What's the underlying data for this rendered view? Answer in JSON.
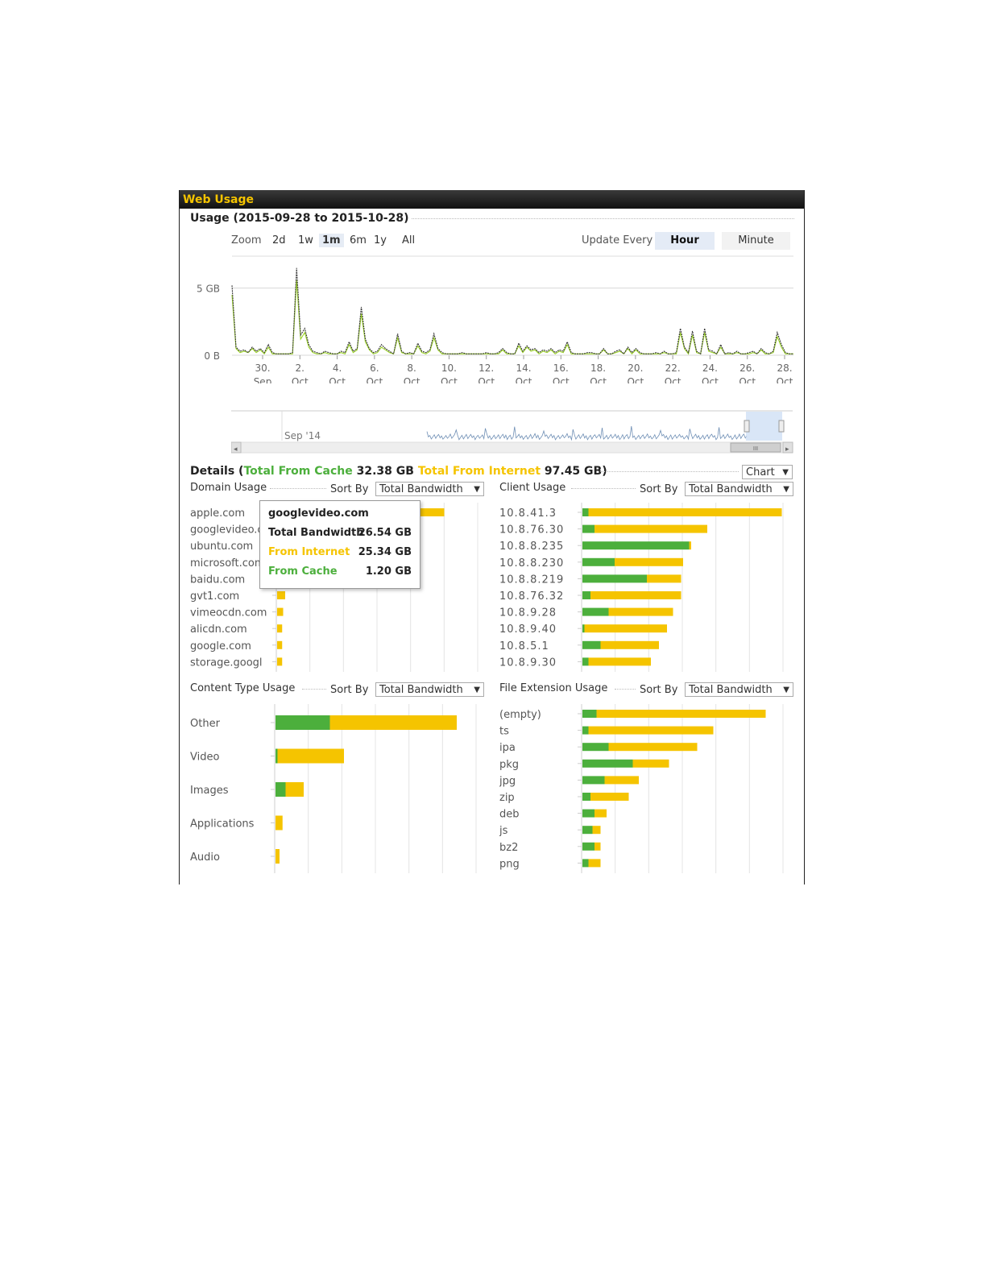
{
  "panel": {
    "title": "Web Usage"
  },
  "usage": {
    "title": "Usage (2015-09-28 to 2015-10-28)",
    "zoom_label": "Zoom",
    "zoom_options": [
      "2d",
      "1w",
      "1m",
      "6m",
      "1y",
      "All"
    ],
    "zoom_selected": "1m",
    "update_label": "Update Every",
    "update_options": [
      "Hour",
      "Minute"
    ],
    "update_selected": "Hour",
    "navigator_label": "Sep '14",
    "navigator_scroll": "III"
  },
  "chart_data": {
    "type": "line",
    "yticks": [
      "5 GB",
      "0 B"
    ],
    "xticks": [
      [
        "30.",
        "Sep"
      ],
      [
        "2.",
        "Oct"
      ],
      [
        "4.",
        "Oct"
      ],
      [
        "6.",
        "Oct"
      ],
      [
        "8.",
        "Oct"
      ],
      [
        "10.",
        "Oct"
      ],
      [
        "12.",
        "Oct"
      ],
      [
        "14.",
        "Oct"
      ],
      [
        "16.",
        "Oct"
      ],
      [
        "18.",
        "Oct"
      ],
      [
        "20.",
        "Oct"
      ],
      [
        "22.",
        "Oct"
      ],
      [
        "24.",
        "Oct"
      ],
      [
        "26.",
        "Oct"
      ],
      [
        "28.",
        "Oct"
      ]
    ],
    "ylim": [
      0,
      6.3
    ],
    "series": [
      {
        "color": "#333333",
        "values": [
          5.2,
          0.6,
          0.3,
          0.4,
          0.2,
          0.6,
          0.3,
          0.5,
          0.2,
          0.8,
          0.2,
          0.1,
          0.1,
          0.1,
          0.1,
          0.2,
          6.5,
          1.5,
          2.0,
          0.8,
          0.3,
          0.2,
          0.1,
          0.3,
          0.2,
          0.1,
          0.1,
          0.3,
          0.2,
          1.0,
          0.3,
          0.5,
          3.6,
          1.2,
          0.5,
          0.2,
          0.3,
          0.8,
          0.5,
          0.3,
          0.1,
          1.6,
          0.3,
          0.1,
          0.2,
          0.1,
          0.9,
          0.3,
          0.2,
          0.4,
          1.6,
          0.5,
          0.2,
          0.1,
          0.1,
          0.1,
          0.1,
          0.2,
          0.1,
          0.1,
          0.1,
          0.1,
          0.1,
          0.2,
          0.1,
          0.1,
          0.2,
          0.5,
          0.2,
          0.1,
          0.1,
          0.9,
          0.3,
          0.7,
          0.4,
          0.5,
          0.2,
          0.4,
          0.3,
          0.5,
          0.2,
          0.4,
          0.3,
          1.0,
          0.2,
          0.1,
          0.1,
          0.1,
          0.2,
          0.2,
          0.1,
          0.1,
          0.5,
          0.1,
          0.1,
          0.3,
          0.4,
          0.1,
          0.6,
          0.2,
          0.5,
          0.2,
          0.1,
          0.1,
          0.1,
          0.2,
          0.1,
          0.3,
          0.1,
          0.1,
          0.2,
          2.0,
          0.6,
          0.2,
          1.8,
          0.3,
          0.1,
          2.0,
          0.4,
          0.3,
          0.1,
          0.8,
          0.1,
          0.2,
          0.1,
          0.3,
          0.1,
          0.1,
          0.2,
          0.3,
          0.1,
          0.5,
          0.2,
          0.1,
          0.3,
          1.7,
          0.8,
          0.2,
          0.1,
          0.1
        ]
      },
      {
        "color": "#9ad127",
        "values": [
          4.5,
          0.5,
          0.2,
          0.3,
          0.2,
          0.5,
          0.2,
          0.4,
          0.1,
          0.6,
          0.1,
          0.1,
          0.1,
          0.1,
          0.1,
          0.1,
          5.6,
          1.2,
          1.7,
          0.6,
          0.2,
          0.1,
          0.1,
          0.2,
          0.1,
          0.1,
          0.1,
          0.2,
          0.1,
          0.8,
          0.2,
          0.4,
          3.1,
          1.0,
          0.4,
          0.1,
          0.2,
          0.6,
          0.4,
          0.2,
          0.1,
          1.3,
          0.2,
          0.1,
          0.1,
          0.1,
          0.7,
          0.2,
          0.1,
          0.3,
          1.3,
          0.4,
          0.1,
          0.1,
          0.1,
          0.1,
          0.1,
          0.1,
          0.1,
          0.1,
          0.1,
          0.1,
          0.1,
          0.1,
          0.1,
          0.1,
          0.1,
          0.4,
          0.1,
          0.1,
          0.1,
          0.7,
          0.2,
          0.6,
          0.3,
          0.4,
          0.1,
          0.3,
          0.2,
          0.4,
          0.1,
          0.3,
          0.2,
          0.8,
          0.1,
          0.1,
          0.1,
          0.1,
          0.1,
          0.1,
          0.1,
          0.1,
          0.4,
          0.1,
          0.1,
          0.2,
          0.3,
          0.1,
          0.5,
          0.1,
          0.4,
          0.1,
          0.1,
          0.1,
          0.1,
          0.1,
          0.1,
          0.2,
          0.1,
          0.1,
          0.1,
          1.7,
          0.5,
          0.1,
          1.5,
          0.2,
          0.1,
          1.7,
          0.3,
          0.2,
          0.1,
          0.6,
          0.1,
          0.1,
          0.1,
          0.2,
          0.1,
          0.1,
          0.1,
          0.2,
          0.1,
          0.4,
          0.1,
          0.1,
          0.2,
          1.4,
          0.6,
          0.1,
          0.1,
          0.1
        ]
      }
    ]
  },
  "details": {
    "title_prefix": "Details (",
    "cache_label": "Total From Cache",
    "cache_value": "32.38 GB",
    "internet_label": "Total From Internet",
    "internet_value": "97.45 GB)",
    "view_select": "Chart"
  },
  "sort_label": "Sort By",
  "sort_value": "Total Bandwidth",
  "colors": {
    "cache": "#4caf3c",
    "internet": "#f5c400"
  },
  "domain": {
    "title": "Domain Usage",
    "items": [
      {
        "label": "apple.com",
        "cache": 0.0,
        "internet": 0.83
      },
      {
        "label": "googlevideo.com",
        "cache": 0.0,
        "internet": 0.66
      },
      {
        "label": "ubuntu.com",
        "cache": 0.0,
        "internet": 0.0
      },
      {
        "label": "microsoft.com",
        "cache": 0.0,
        "internet": 0.0
      },
      {
        "label": "baidu.com",
        "cache": 0.0,
        "internet": 0.0
      },
      {
        "label": "gvt1.com",
        "cache": 0.0,
        "internet": 0.04
      },
      {
        "label": "vimeocdn.com",
        "cache": 0.0,
        "internet": 0.03
      },
      {
        "label": "alicdn.com",
        "cache": 0.0,
        "internet": 0.025
      },
      {
        "label": "google.com",
        "cache": 0.0,
        "internet": 0.025
      },
      {
        "label": "storage.googleapis.com",
        "cache": 0.0,
        "internet": 0.025
      }
    ]
  },
  "tooltip": {
    "title": "googlevideo.com",
    "total_label": "Total Bandwidth",
    "total_value": "26.54 GB",
    "internet_label": "From Internet",
    "internet_value": "25.34 GB",
    "cache_label": "From Cache",
    "cache_value": "1.20 GB"
  },
  "client": {
    "title": "Client Usage",
    "items": [
      {
        "label": "10.8.41.3",
        "cache": 0.03,
        "internet": 0.96
      },
      {
        "label": "10.8.76.30",
        "cache": 0.06,
        "internet": 0.56
      },
      {
        "label": "10.8.8.235",
        "cache": 0.53,
        "internet": 0.01
      },
      {
        "label": "10.8.8.230",
        "cache": 0.16,
        "internet": 0.34
      },
      {
        "label": "10.8.8.219",
        "cache": 0.32,
        "internet": 0.17
      },
      {
        "label": "10.8.76.32",
        "cache": 0.04,
        "internet": 0.45
      },
      {
        "label": "10.8.9.28",
        "cache": 0.13,
        "internet": 0.32
      },
      {
        "label": "10.8.9.40",
        "cache": 0.01,
        "internet": 0.41
      },
      {
        "label": "10.8.5.1",
        "cache": 0.09,
        "internet": 0.29
      },
      {
        "label": "10.8.9.30",
        "cache": 0.03,
        "internet": 0.31
      }
    ]
  },
  "content": {
    "title": "Content Type Usage",
    "items": [
      {
        "label": "Other",
        "cache": 0.27,
        "internet": 0.63
      },
      {
        "label": "Video",
        "cache": 0.01,
        "internet": 0.33
      },
      {
        "label": "Images",
        "cache": 0.05,
        "internet": 0.09
      },
      {
        "label": "Applications",
        "cache": 0.0,
        "internet": 0.035
      },
      {
        "label": "Audio",
        "cache": 0.0,
        "internet": 0.02
      }
    ]
  },
  "fileext": {
    "title": "File Extension Usage",
    "items": [
      {
        "label": "(empty)",
        "cache": 0.07,
        "internet": 0.84
      },
      {
        "label": "ts",
        "cache": 0.03,
        "internet": 0.62
      },
      {
        "label": "ipa",
        "cache": 0.13,
        "internet": 0.44
      },
      {
        "label": "pkg",
        "cache": 0.25,
        "internet": 0.18
      },
      {
        "label": "jpg",
        "cache": 0.11,
        "internet": 0.17
      },
      {
        "label": "zip",
        "cache": 0.04,
        "internet": 0.19
      },
      {
        "label": "deb",
        "cache": 0.06,
        "internet": 0.06
      },
      {
        "label": "js",
        "cache": 0.05,
        "internet": 0.04
      },
      {
        "label": "bz2",
        "cache": 0.06,
        "internet": 0.03
      },
      {
        "label": "png",
        "cache": 0.03,
        "internet": 0.06
      }
    ]
  }
}
